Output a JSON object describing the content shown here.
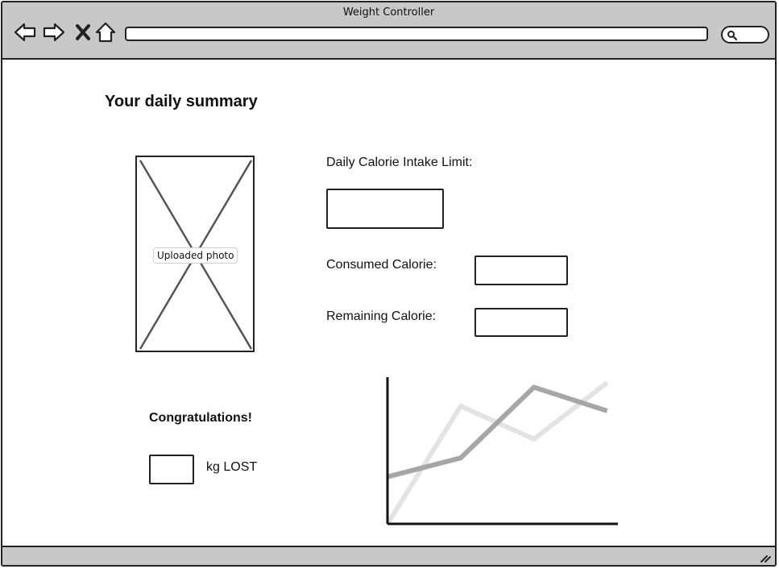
{
  "window": {
    "title": "Weight Controller"
  },
  "toolbar": {
    "icons": [
      "back-arrow-icon",
      "forward-arrow-icon",
      "close-icon",
      "home-icon",
      "search-icon"
    ],
    "address_value": ""
  },
  "page": {
    "title": "Your daily summary"
  },
  "photo": {
    "label": "Uploaded photo"
  },
  "calories": {
    "limit_label": "Daily Calorie Intake Limit:",
    "limit_value": "",
    "consumed_label": "Consumed Calorie:",
    "consumed_value": "",
    "remaining_label": "Remaining Calorie:",
    "remaining_value": ""
  },
  "weight": {
    "congrats": "Congratulations!",
    "kg_value": "",
    "lost_label": "kg LOST"
  },
  "chart_data": {
    "type": "line",
    "x": [
      0,
      1,
      2,
      3
    ],
    "series": [
      {
        "values": [
          1.0,
          1.4,
          2.9,
          2.4
        ],
        "color": "#a6a6a6"
      },
      {
        "values": [
          0.0,
          2.5,
          1.8,
          3.0
        ],
        "color": "#e3e3e3"
      }
    ],
    "xlim": [
      0,
      3.3
    ],
    "ylim": [
      0,
      3.2
    ],
    "grid": false
  }
}
